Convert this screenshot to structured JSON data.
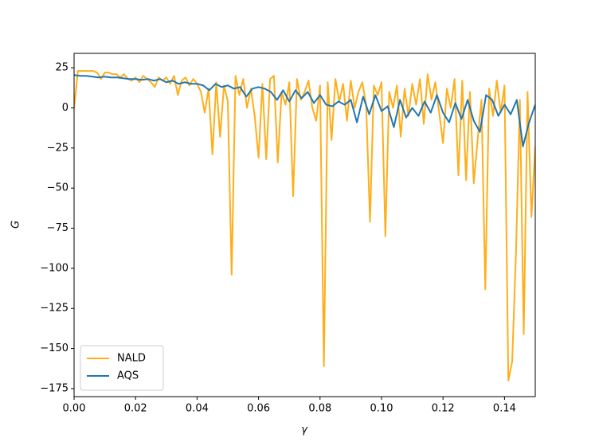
{
  "chart_data": {
    "type": "line",
    "xlabel": "γ",
    "ylabel": "G",
    "xlim": [
      0,
      0.15
    ],
    "ylim": [
      -180,
      34
    ],
    "xticks": [
      {
        "value": 0,
        "label": "0.00"
      },
      {
        "value": 0.02,
        "label": "0.02"
      },
      {
        "value": 0.04,
        "label": "0.04"
      },
      {
        "value": 0.06,
        "label": "0.06"
      },
      {
        "value": 0.08,
        "label": "0.08"
      },
      {
        "value": 0.1,
        "label": "0.10"
      },
      {
        "value": 0.12,
        "label": "0.12"
      },
      {
        "value": 0.14,
        "label": "0.14"
      }
    ],
    "yticks": [
      25,
      0,
      {
        "value": -25,
        "label": "−25"
      },
      {
        "value": -50,
        "label": "−50"
      },
      {
        "value": -75,
        "label": "−75"
      },
      {
        "value": -100,
        "label": "−100"
      },
      {
        "value": -125,
        "label": "−125"
      },
      {
        "value": -150,
        "label": "−150"
      },
      {
        "value": -175,
        "label": "−175"
      }
    ],
    "legend": "lower left",
    "series": [
      {
        "name": "NALD",
        "color": "#ffae1a",
        "x": [
          0,
          0.00125,
          0.0025,
          0.00375,
          0.005,
          0.00625,
          0.0075,
          0.00875,
          0.01,
          0.01125,
          0.0125,
          0.01375,
          0.015,
          0.01625,
          0.0175,
          0.01875,
          0.02,
          0.02125,
          0.0225,
          0.02375,
          0.025,
          0.02625,
          0.0275,
          0.02875,
          0.03,
          0.03125,
          0.0325,
          0.03375,
          0.035,
          0.03625,
          0.0375,
          0.03875,
          0.04,
          0.04125,
          0.0425,
          0.04375,
          0.045,
          0.04625,
          0.0475,
          0.04875,
          0.05,
          0.05125,
          0.0525,
          0.05375,
          0.055,
          0.05625,
          0.0575,
          0.05875,
          0.06,
          0.06125,
          0.0625,
          0.06375,
          0.065,
          0.06625,
          0.0675,
          0.06875,
          0.07,
          0.07125,
          0.0725,
          0.07375,
          0.075,
          0.07625,
          0.0775,
          0.07875,
          0.08,
          0.08125,
          0.0825,
          0.08375,
          0.085,
          0.08625,
          0.0875,
          0.08875,
          0.09,
          0.09125,
          0.0925,
          0.09375,
          0.095,
          0.09625,
          0.0975,
          0.09875,
          0.1,
          0.10125,
          0.1025,
          0.10375,
          0.105,
          0.10625,
          0.1075,
          0.10875,
          0.11,
          0.11125,
          0.1125,
          0.11375,
          0.115,
          0.11625,
          0.1175,
          0.11875,
          0.12,
          0.12125,
          0.1225,
          0.12375,
          0.125,
          0.12625,
          0.1275,
          0.12875,
          0.13,
          0.13125,
          0.1325,
          0.13375,
          0.135,
          0.13625,
          0.1375,
          0.13875,
          0.14,
          0.14125,
          0.1425,
          0.14375,
          0.145,
          0.14625,
          0.1475,
          0.14875,
          0.15
        ],
        "values": [
          0,
          23,
          23,
          23,
          23,
          23,
          22,
          18,
          22,
          22,
          21,
          21,
          19,
          21,
          18,
          17,
          19,
          16,
          20,
          18,
          16,
          13,
          19,
          17,
          19,
          15,
          20,
          8,
          17,
          19,
          14,
          18,
          15,
          10,
          -3,
          12,
          -29,
          16,
          -18,
          14,
          4,
          -104,
          20,
          8,
          18,
          0,
          12,
          -5,
          -31,
          15,
          -32,
          18,
          20,
          -34,
          10,
          2,
          16,
          -55,
          18,
          5,
          10,
          17,
          0,
          -8,
          14,
          -161,
          16,
          -20,
          18,
          4,
          15,
          -8,
          17,
          0,
          10,
          16,
          2,
          -71,
          14,
          8,
          16,
          -80,
          10,
          0,
          14,
          -18,
          12,
          -5,
          15,
          2,
          18,
          -10,
          21,
          5,
          16,
          -3,
          -22,
          12,
          0,
          18,
          -42,
          17,
          -45,
          10,
          -47,
          -20,
          5,
          -113,
          12,
          -5,
          17,
          -3,
          14,
          -170,
          -158,
          -89,
          5,
          -141,
          10,
          -68,
          -24
        ]
      },
      {
        "name": "AQS",
        "color": "#1f77b4",
        "x": [
          0,
          0.002,
          0.004,
          0.006,
          0.008,
          0.01,
          0.012,
          0.014,
          0.016,
          0.018,
          0.02,
          0.022,
          0.024,
          0.026,
          0.028,
          0.03,
          0.032,
          0.034,
          0.036,
          0.038,
          0.04,
          0.042,
          0.044,
          0.046,
          0.048,
          0.05,
          0.052,
          0.054,
          0.056,
          0.058,
          0.06,
          0.062,
          0.064,
          0.066,
          0.068,
          0.07,
          0.072,
          0.074,
          0.076,
          0.078,
          0.08,
          0.082,
          0.084,
          0.086,
          0.088,
          0.09,
          0.092,
          0.094,
          0.096,
          0.098,
          0.1,
          0.102,
          0.104,
          0.106,
          0.108,
          0.11,
          0.112,
          0.114,
          0.116,
          0.118,
          0.12,
          0.122,
          0.124,
          0.126,
          0.128,
          0.13,
          0.132,
          0.134,
          0.136,
          0.138,
          0.14,
          0.142,
          0.144,
          0.146,
          0.148,
          0.15
        ],
        "values": [
          20.5,
          20,
          20,
          19.5,
          19,
          19.5,
          19,
          19,
          18.5,
          18,
          18,
          17.5,
          18,
          17,
          18,
          16,
          17,
          15,
          16,
          15,
          15,
          14,
          11,
          15,
          13,
          14,
          12,
          13,
          7,
          12,
          13,
          12,
          10,
          5,
          11,
          4,
          11,
          6,
          10,
          3,
          8,
          2,
          1,
          4,
          2,
          5,
          -9,
          7,
          -4,
          8,
          -2,
          1,
          -12,
          5,
          -6,
          0,
          -5,
          4,
          -3,
          8,
          -3,
          -9,
          3,
          -7,
          5,
          -8,
          -15,
          8,
          5,
          -5,
          2,
          -4,
          5,
          -24,
          -9,
          2
        ]
      }
    ]
  }
}
